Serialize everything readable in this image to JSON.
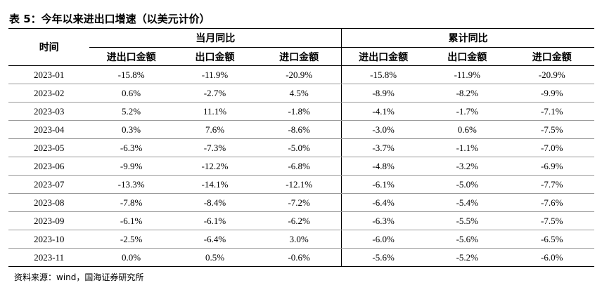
{
  "title": "表 5：今年以来进出口增速（以美元计价）",
  "header": {
    "time": "时间",
    "group_monthly": "当月同比",
    "group_cumulative": "累计同比",
    "col_total": "进出口金额",
    "col_export": "出口金额",
    "col_import": "进口金额"
  },
  "rows": [
    {
      "date": "2023-01",
      "m_total": "-15.8%",
      "m_export": "-11.9%",
      "m_import": "-20.9%",
      "c_total": "-15.8%",
      "c_export": "-11.9%",
      "c_import": "-20.9%"
    },
    {
      "date": "2023-02",
      "m_total": "0.6%",
      "m_export": "-2.7%",
      "m_import": "4.5%",
      "c_total": "-8.9%",
      "c_export": "-8.2%",
      "c_import": "-9.9%"
    },
    {
      "date": "2023-03",
      "m_total": "5.2%",
      "m_export": "11.1%",
      "m_import": "-1.8%",
      "c_total": "-4.1%",
      "c_export": "-1.7%",
      "c_import": "-7.1%"
    },
    {
      "date": "2023-04",
      "m_total": "0.3%",
      "m_export": "7.6%",
      "m_import": "-8.6%",
      "c_total": "-3.0%",
      "c_export": "0.6%",
      "c_import": "-7.5%"
    },
    {
      "date": "2023-05",
      "m_total": "-6.3%",
      "m_export": "-7.3%",
      "m_import": "-5.0%",
      "c_total": "-3.7%",
      "c_export": "-1.1%",
      "c_import": "-7.0%"
    },
    {
      "date": "2023-06",
      "m_total": "-9.9%",
      "m_export": "-12.2%",
      "m_import": "-6.8%",
      "c_total": "-4.8%",
      "c_export": "-3.2%",
      "c_import": "-6.9%"
    },
    {
      "date": "2023-07",
      "m_total": "-13.3%",
      "m_export": "-14.1%",
      "m_import": "-12.1%",
      "c_total": "-6.1%",
      "c_export": "-5.0%",
      "c_import": "-7.7%"
    },
    {
      "date": "2023-08",
      "m_total": "-7.8%",
      "m_export": "-8.4%",
      "m_import": "-7.2%",
      "c_total": "-6.4%",
      "c_export": "-5.4%",
      "c_import": "-7.6%"
    },
    {
      "date": "2023-09",
      "m_total": "-6.1%",
      "m_export": "-6.1%",
      "m_import": "-6.2%",
      "c_total": "-6.3%",
      "c_export": "-5.5%",
      "c_import": "-7.5%"
    },
    {
      "date": "2023-10",
      "m_total": "-2.5%",
      "m_export": "-6.4%",
      "m_import": "3.0%",
      "c_total": "-6.0%",
      "c_export": "-5.6%",
      "c_import": "-6.5%"
    },
    {
      "date": "2023-11",
      "m_total": "0.0%",
      "m_export": "0.5%",
      "m_import": "-0.6%",
      "c_total": "-5.6%",
      "c_export": "-5.2%",
      "c_import": "-6.0%"
    }
  ],
  "source": "资料来源：wind，国海证券研究所"
}
